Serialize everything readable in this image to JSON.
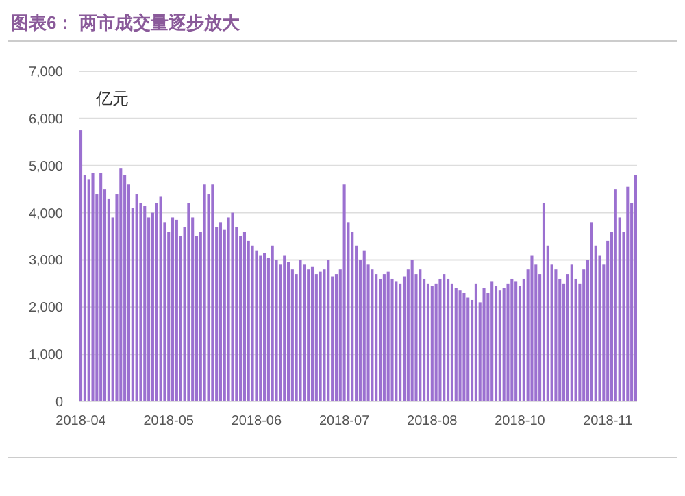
{
  "chart_data": {
    "type": "bar",
    "title": "图表6：  两市成交量逐步放大",
    "ylabel": "亿元",
    "categories": [
      "2018-04",
      null,
      null,
      null,
      null,
      null,
      null,
      null,
      null,
      null,
      null,
      null,
      null,
      null,
      null,
      null,
      null,
      null,
      null,
      null,
      null,
      null,
      "2018-05",
      null,
      null,
      null,
      null,
      null,
      null,
      null,
      null,
      null,
      null,
      null,
      null,
      null,
      null,
      null,
      null,
      null,
      null,
      null,
      null,
      null,
      "2018-06",
      null,
      null,
      null,
      null,
      null,
      null,
      null,
      null,
      null,
      null,
      null,
      null,
      null,
      null,
      null,
      null,
      null,
      null,
      null,
      null,
      null,
      "2018-07",
      null,
      null,
      null,
      null,
      null,
      null,
      null,
      null,
      null,
      null,
      null,
      null,
      null,
      null,
      null,
      null,
      null,
      null,
      null,
      null,
      null,
      "2018-08",
      null,
      null,
      null,
      null,
      null,
      null,
      null,
      null,
      null,
      null,
      null,
      null,
      null,
      null,
      null,
      null,
      null,
      null,
      null,
      null,
      null,
      "2018-10",
      null,
      null,
      null,
      null,
      null,
      null,
      null,
      null,
      null,
      null,
      null,
      null,
      null,
      null,
      null,
      null,
      null,
      null,
      null,
      null,
      null,
      "2018-11",
      null,
      null,
      null,
      null,
      null,
      null,
      null
    ],
    "values": [
      5750,
      4800,
      4700,
      4850,
      4400,
      4850,
      4500,
      4300,
      3900,
      4400,
      4950,
      4800,
      4600,
      4100,
      4400,
      4200,
      4150,
      3900,
      4000,
      4200,
      4350,
      3800,
      3600,
      3900,
      3850,
      3500,
      3700,
      4200,
      3900,
      3500,
      3600,
      4600,
      4400,
      4600,
      3700,
      3800,
      3650,
      3900,
      4000,
      3700,
      3500,
      3600,
      3400,
      3300,
      3200,
      3100,
      3150,
      3050,
      3300,
      3000,
      2900,
      3100,
      2950,
      2800,
      2700,
      3000,
      2900,
      2800,
      2850,
      2700,
      2750,
      2800,
      3000,
      2650,
      2700,
      2800,
      4600,
      3800,
      3600,
      3300,
      3000,
      3200,
      2900,
      2800,
      2700,
      2600,
      2700,
      2750,
      2600,
      2550,
      2500,
      2650,
      2800,
      3000,
      2700,
      2800,
      2600,
      2500,
      2450,
      2500,
      2600,
      2700,
      2600,
      2500,
      2400,
      2350,
      2300,
      2200,
      2150,
      2500,
      2100,
      2400,
      2300,
      2550,
      2450,
      2350,
      2400,
      2500,
      2600,
      2550,
      2450,
      2600,
      2800,
      3100,
      2900,
      2700,
      4200,
      3300,
      2900,
      2800,
      2600,
      2500,
      2700,
      2900,
      2600,
      2500,
      2800,
      3000,
      3800,
      3300,
      3100,
      2900,
      3400,
      3600,
      4500,
      3900,
      3600,
      4550,
      4200,
      4800
    ],
    "color": "#9b70d0",
    "ylim": [
      0,
      7000
    ],
    "yticks": [
      {
        "value": 0,
        "label": "0"
      },
      {
        "value": 1000,
        "label": "1,000"
      },
      {
        "value": 2000,
        "label": "2,000"
      },
      {
        "value": 3000,
        "label": "3,000"
      },
      {
        "value": 4000,
        "label": "4,000"
      },
      {
        "value": 5000,
        "label": "5,000"
      },
      {
        "value": 6000,
        "label": "6,000"
      },
      {
        "value": 7000,
        "label": "7,000"
      }
    ],
    "grid": "y"
  }
}
